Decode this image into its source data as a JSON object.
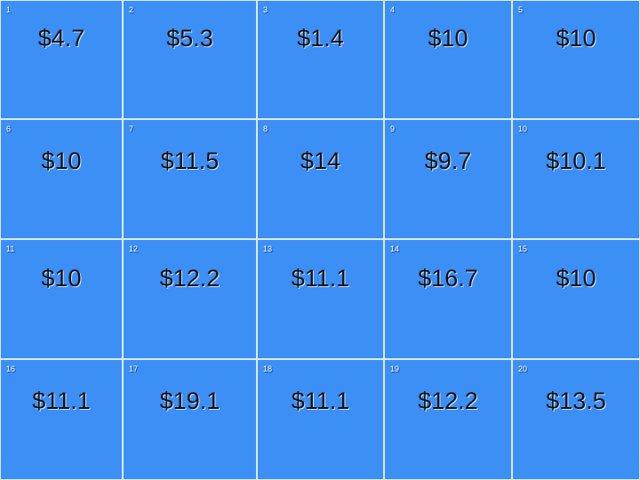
{
  "board": {
    "cells": [
      {
        "num": "1",
        "amount": "$4.7"
      },
      {
        "num": "2",
        "amount": "$5.3"
      },
      {
        "num": "3",
        "amount": "$1.4"
      },
      {
        "num": "4",
        "amount": "$10"
      },
      {
        "num": "5",
        "amount": "$10"
      },
      {
        "num": "6",
        "amount": "$10"
      },
      {
        "num": "7",
        "amount": "$11.5"
      },
      {
        "num": "8",
        "amount": "$14"
      },
      {
        "num": "9",
        "amount": "$9.7"
      },
      {
        "num": "10",
        "amount": "$10.1"
      },
      {
        "num": "11",
        "amount": "$10"
      },
      {
        "num": "12",
        "amount": "$12.2"
      },
      {
        "num": "13",
        "amount": "$11.1"
      },
      {
        "num": "14",
        "amount": "$16.7"
      },
      {
        "num": "15",
        "amount": "$10"
      },
      {
        "num": "16",
        "amount": "$11.1"
      },
      {
        "num": "17",
        "amount": "$19.1"
      },
      {
        "num": "18",
        "amount": "$11.1"
      },
      {
        "num": "19",
        "amount": "$12.2"
      },
      {
        "num": "20",
        "amount": "$13.5"
      }
    ]
  },
  "colors": {
    "tile": "#3b8ff5",
    "grid_line": "#dfeaf7"
  }
}
